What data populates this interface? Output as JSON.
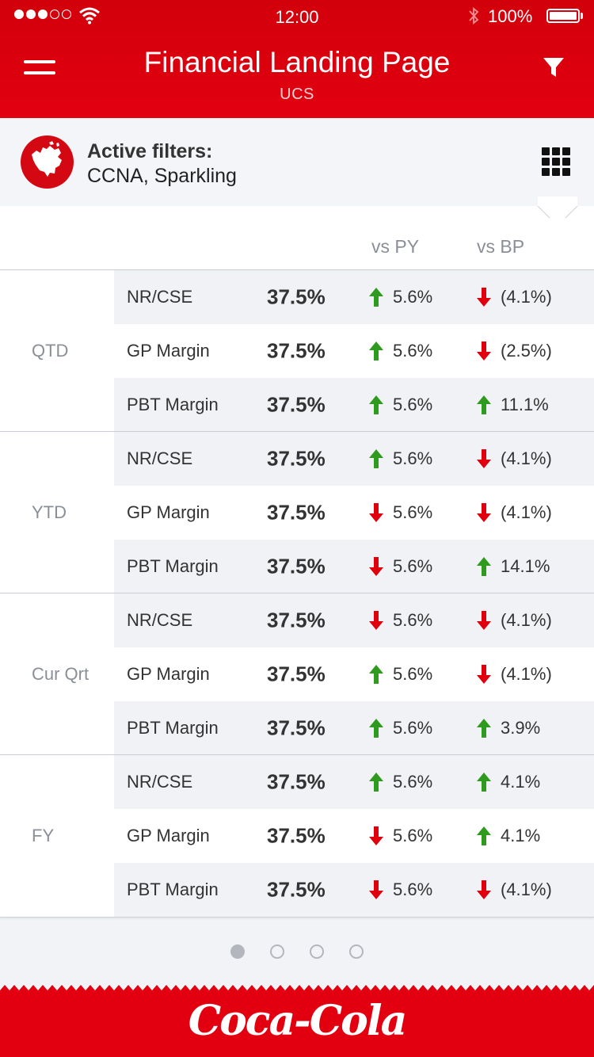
{
  "status_bar": {
    "time": "12:00",
    "battery": "100%"
  },
  "header": {
    "title": "Financial Landing Page",
    "subtitle": "UCS"
  },
  "filters": {
    "heading": "Active filters:",
    "values": "CCNA, Sparkling"
  },
  "table": {
    "columns": {
      "vs_py": "vs PY",
      "vs_bp": "vs BP"
    },
    "groups": [
      {
        "label": "QTD",
        "rows": [
          {
            "metric": "NR/CSE",
            "value": "37.5%",
            "py": "5.6%",
            "py_dir": "up",
            "bp": "(4.1%)",
            "bp_dir": "down"
          },
          {
            "metric": "GP Margin",
            "value": "37.5%",
            "py": "5.6%",
            "py_dir": "up",
            "bp": "(2.5%)",
            "bp_dir": "down"
          },
          {
            "metric": "PBT Margin",
            "value": "37.5%",
            "py": "5.6%",
            "py_dir": "up",
            "bp": "11.1%",
            "bp_dir": "up"
          }
        ]
      },
      {
        "label": "YTD",
        "rows": [
          {
            "metric": "NR/CSE",
            "value": "37.5%",
            "py": "5.6%",
            "py_dir": "up",
            "bp": "(4.1%)",
            "bp_dir": "down"
          },
          {
            "metric": "GP Margin",
            "value": "37.5%",
            "py": "5.6%",
            "py_dir": "down",
            "bp": "(4.1%)",
            "bp_dir": "down"
          },
          {
            "metric": "PBT Margin",
            "value": "37.5%",
            "py": "5.6%",
            "py_dir": "down",
            "bp": "14.1%",
            "bp_dir": "up"
          }
        ]
      },
      {
        "label": "Cur Qrt",
        "rows": [
          {
            "metric": "NR/CSE",
            "value": "37.5%",
            "py": "5.6%",
            "py_dir": "down",
            "bp": "(4.1%)",
            "bp_dir": "down"
          },
          {
            "metric": "GP Margin",
            "value": "37.5%",
            "py": "5.6%",
            "py_dir": "up",
            "bp": "(4.1%)",
            "bp_dir": "down"
          },
          {
            "metric": "PBT Margin",
            "value": "37.5%",
            "py": "5.6%",
            "py_dir": "up",
            "bp": "3.9%",
            "bp_dir": "up"
          }
        ]
      },
      {
        "label": "FY",
        "rows": [
          {
            "metric": "NR/CSE",
            "value": "37.5%",
            "py": "5.6%",
            "py_dir": "up",
            "bp": "4.1%",
            "bp_dir": "up"
          },
          {
            "metric": "GP Margin",
            "value": "37.5%",
            "py": "5.6%",
            "py_dir": "down",
            "bp": "4.1%",
            "bp_dir": "up"
          },
          {
            "metric": "PBT Margin",
            "value": "37.5%",
            "py": "5.6%",
            "py_dir": "down",
            "bp": "(4.1%)",
            "bp_dir": "down"
          }
        ]
      }
    ]
  },
  "pager": {
    "total": 4,
    "active": 1
  },
  "footer": {
    "brand": "Coca-Cola"
  },
  "colors": {
    "brand_red": "#e20010",
    "up": "#2e9a1e",
    "down": "#e0000d"
  }
}
